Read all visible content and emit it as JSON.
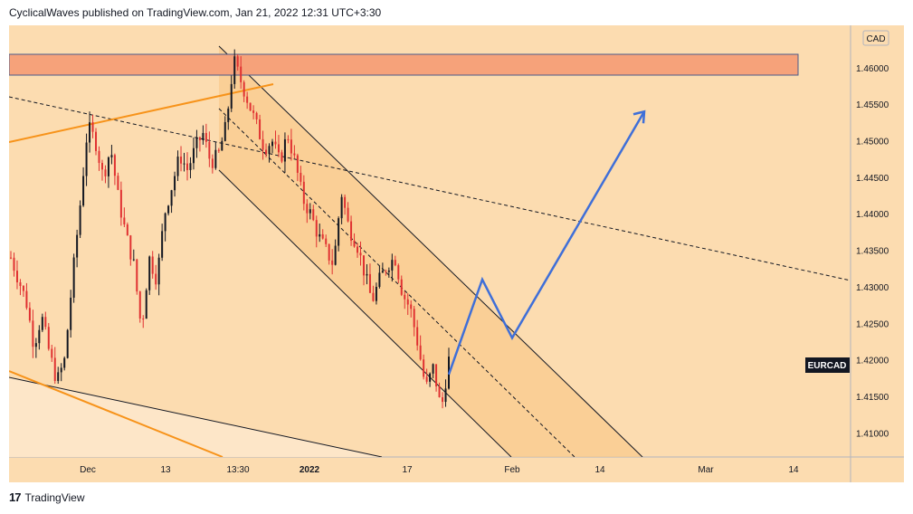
{
  "header": {
    "text": "CyclicalWaves published on TradingView.com, Jan 21, 2022 12:31 UTC+3:30"
  },
  "footer": {
    "logo_glyph": "17",
    "brand": "TradingView"
  },
  "chart_data": {
    "type": "candlestick",
    "symbol": "EURCAD",
    "currency": "CAD",
    "last_price": 1.42,
    "ylim": [
      1.4067,
      1.4658
    ],
    "y_ticks": [
      "1.46000",
      "1.45500",
      "1.45000",
      "1.44500",
      "1.44000",
      "1.43500",
      "1.43000",
      "1.42500",
      "1.42000",
      "1.41500",
      "1.41000"
    ],
    "x_ticks": [
      "Dec",
      "13",
      "13:30",
      "2022",
      "17",
      "Feb",
      "14",
      "Mar",
      "14"
    ],
    "colors": {
      "background": "#fcdcb0",
      "up": "#131722",
      "down": "#e03131",
      "zone": "#f6a27a",
      "channel_fill": "#f9c98c",
      "support_lines": "#f7931a",
      "forecast": "#3f6fd8"
    },
    "close_path": [
      1.434,
      1.431,
      1.428,
      1.422,
      1.426,
      1.421,
      1.417,
      1.42,
      1.431,
      1.441,
      1.452,
      1.45,
      1.445,
      1.449,
      1.442,
      1.437,
      1.433,
      1.424,
      1.434,
      1.431,
      1.44,
      1.444,
      1.448,
      1.446,
      1.449,
      1.451,
      1.447,
      1.448,
      1.452,
      1.461,
      1.458,
      1.455,
      1.452,
      1.449,
      1.45,
      1.447,
      1.451,
      1.447,
      1.442,
      1.44,
      1.437,
      1.435,
      1.433,
      1.443,
      1.438,
      1.436,
      1.432,
      1.428,
      1.431,
      1.433,
      1.434,
      1.429,
      1.427,
      1.422,
      1.416,
      1.419,
      1.413,
      1.42
    ],
    "forecast_path": [
      1.418,
      1.431,
      1.423,
      1.454
    ]
  }
}
